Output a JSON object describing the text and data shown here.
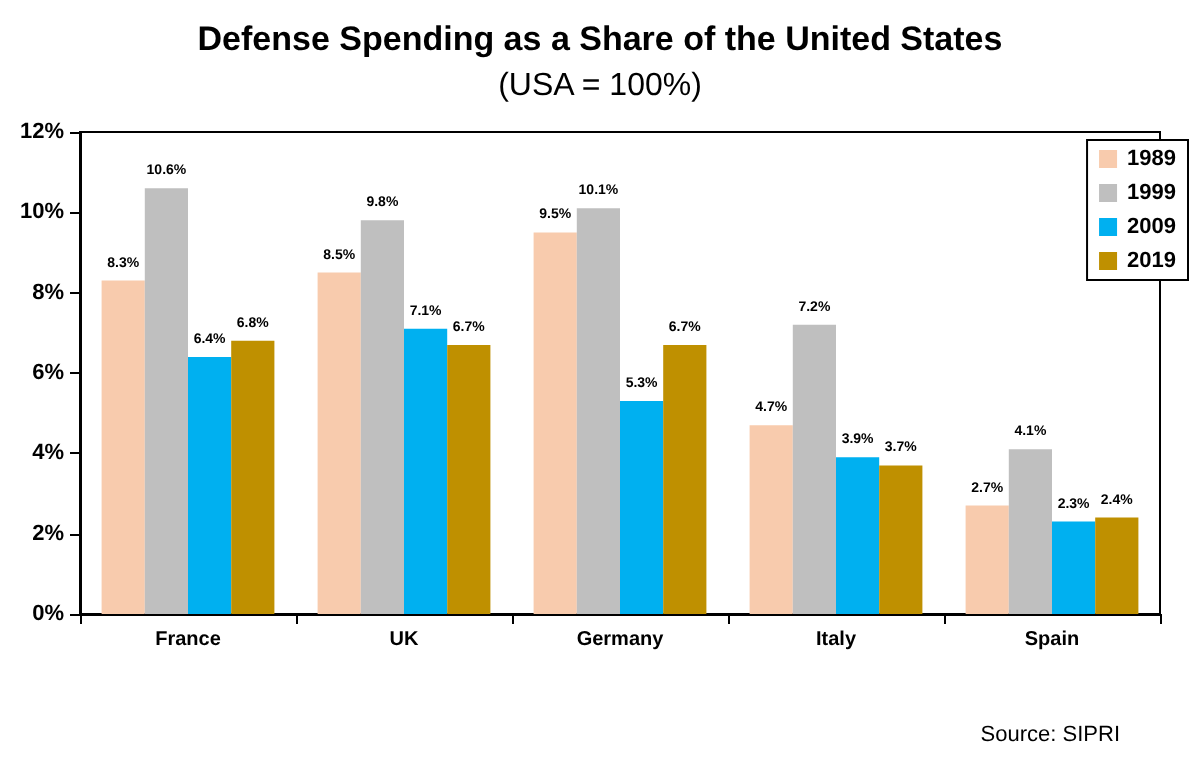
{
  "chart_data": {
    "type": "bar",
    "title": "Defense Spending as a Share of the United States",
    "subtitle": "(USA = 100%)",
    "categories": [
      "France",
      "UK",
      "Germany",
      "Italy",
      "Spain"
    ],
    "series": [
      {
        "name": "1989",
        "color": "#f8cbad",
        "values": [
          8.3,
          8.5,
          9.5,
          4.7,
          2.7
        ],
        "value_labels": [
          "8.3%",
          "8.5%",
          "9.5%",
          "4.7%",
          "2.7%"
        ]
      },
      {
        "name": "1999",
        "color": "#bfbfbf",
        "values": [
          10.6,
          9.8,
          10.1,
          7.2,
          4.1
        ],
        "value_labels": [
          "10.6%",
          "9.8%",
          "10.1%",
          "7.2%",
          "4.1%"
        ]
      },
      {
        "name": "2009",
        "color": "#00b0f0",
        "values": [
          6.4,
          7.1,
          5.3,
          3.9,
          2.3
        ],
        "value_labels": [
          "6.4%",
          "7.1%",
          "5.3%",
          "3.9%",
          "2.3%"
        ]
      },
      {
        "name": "2019",
        "color": "#bf9000",
        "values": [
          6.8,
          6.7,
          6.7,
          3.7,
          2.4
        ],
        "value_labels": [
          "6.8%",
          "6.7%",
          "6.7%",
          "3.7%",
          "2.4%"
        ]
      }
    ],
    "ylim": [
      0,
      12
    ],
    "yticks": [
      {
        "value": 0,
        "label": "0%"
      },
      {
        "value": 2,
        "label": "2%"
      },
      {
        "value": 4,
        "label": "4%"
      },
      {
        "value": 6,
        "label": "6%"
      },
      {
        "value": 8,
        "label": "8%"
      },
      {
        "value": 10,
        "label": "10%"
      },
      {
        "value": 12,
        "label": "12%"
      }
    ],
    "grid": false,
    "legend": "top right",
    "annotations": [
      "Source: SIPRI"
    ]
  }
}
